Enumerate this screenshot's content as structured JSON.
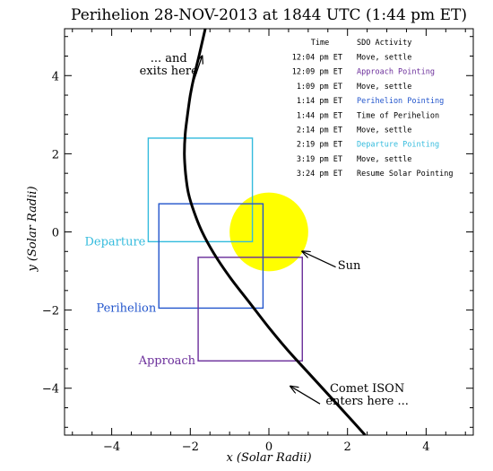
{
  "chart_data": {
    "type": "scatter",
    "title": "Perihelion 28-NOV-2013 at 1844 UTC (1:44 pm ET)",
    "xlabel": "x (Solar Radii)",
    "ylabel": "y (Solar Radii)",
    "xlim": [
      -5.2,
      5.2
    ],
    "ylim": [
      -5.2,
      5.2
    ],
    "xticks": [
      -4,
      -2,
      0,
      2,
      4
    ],
    "yticks": [
      -4,
      -2,
      0,
      2,
      4
    ],
    "grid": false,
    "sun": {
      "label": "Sun",
      "center": [
        0,
        0
      ],
      "radius": 1,
      "color": "#ffff00"
    },
    "trajectory": {
      "name": "Comet ISON",
      "color": "#000000",
      "points": [
        [
          2.45,
          -5.2
        ],
        [
          2.0,
          -4.7
        ],
        [
          1.5,
          -4.15
        ],
        [
          1.0,
          -3.6
        ],
        [
          0.5,
          -3.05
        ],
        [
          0.0,
          -2.45
        ],
        [
          -0.5,
          -1.8
        ],
        [
          -1.0,
          -1.15
        ],
        [
          -1.4,
          -0.55
        ],
        [
          -1.7,
          0.0
        ],
        [
          -1.9,
          0.5
        ],
        [
          -2.05,
          1.0
        ],
        [
          -2.12,
          1.5
        ],
        [
          -2.15,
          2.0
        ],
        [
          -2.13,
          2.5
        ],
        [
          -2.07,
          3.0
        ],
        [
          -2.0,
          3.5
        ],
        [
          -1.9,
          4.0
        ],
        [
          -1.78,
          4.5
        ],
        [
          -1.62,
          5.2
        ]
      ]
    },
    "boxes": [
      {
        "name": "Departure",
        "x0": -3.07,
        "x1": -0.42,
        "y0": -0.25,
        "y1": 2.4,
        "color": "#33bbdd"
      },
      {
        "name": "Perihelion",
        "x0": -2.8,
        "x1": -0.15,
        "y0": -1.95,
        "y1": 0.72,
        "color": "#2255cc"
      },
      {
        "name": "Approach",
        "x0": -1.8,
        "x1": 0.85,
        "y0": -3.3,
        "y1": -0.65,
        "color": "#6a2d9a"
      }
    ],
    "annotations": [
      {
        "text_lines": [
          "... and",
          "exits here"
        ],
        "arrow_from": [
          -2.0,
          3.6
        ],
        "arrow_to": [
          -1.7,
          4.5
        ]
      },
      {
        "text_lines": [
          "Sun"
        ],
        "arrow_from": [
          1.7,
          -0.9
        ],
        "arrow_to": [
          0.85,
          -0.5
        ]
      },
      {
        "text_lines": [
          "Comet ISON",
          "enters here ..."
        ],
        "arrow_from": [
          1.3,
          -4.4
        ],
        "arrow_to": [
          0.55,
          -3.95
        ]
      }
    ],
    "activity_table": {
      "headers": [
        "Time",
        "SDO Activity"
      ],
      "rows": [
        {
          "time": "12:04 pm ET",
          "activity": "Move, settle",
          "color": "#000000"
        },
        {
          "time": "12:09 pm ET",
          "activity": "Approach Pointing",
          "color": "#6a2d9a"
        },
        {
          "time": "1:09 pm ET",
          "activity": "Move, settle",
          "color": "#000000"
        },
        {
          "time": "1:14 pm ET",
          "activity": "Perihelion Pointing",
          "color": "#2255cc"
        },
        {
          "time": "1:44 pm ET",
          "activity": "Time of Perihelion",
          "color": "#000000"
        },
        {
          "time": "2:14 pm ET",
          "activity": "Move, settle",
          "color": "#000000"
        },
        {
          "time": "2:19 pm ET",
          "activity": "Departure Pointing",
          "color": "#33bbdd"
        },
        {
          "time": "3:19 pm ET",
          "activity": "Move, settle",
          "color": "#000000"
        },
        {
          "time": "3:24 pm ET",
          "activity": "Resume Solar Pointing",
          "color": "#000000"
        }
      ]
    }
  }
}
